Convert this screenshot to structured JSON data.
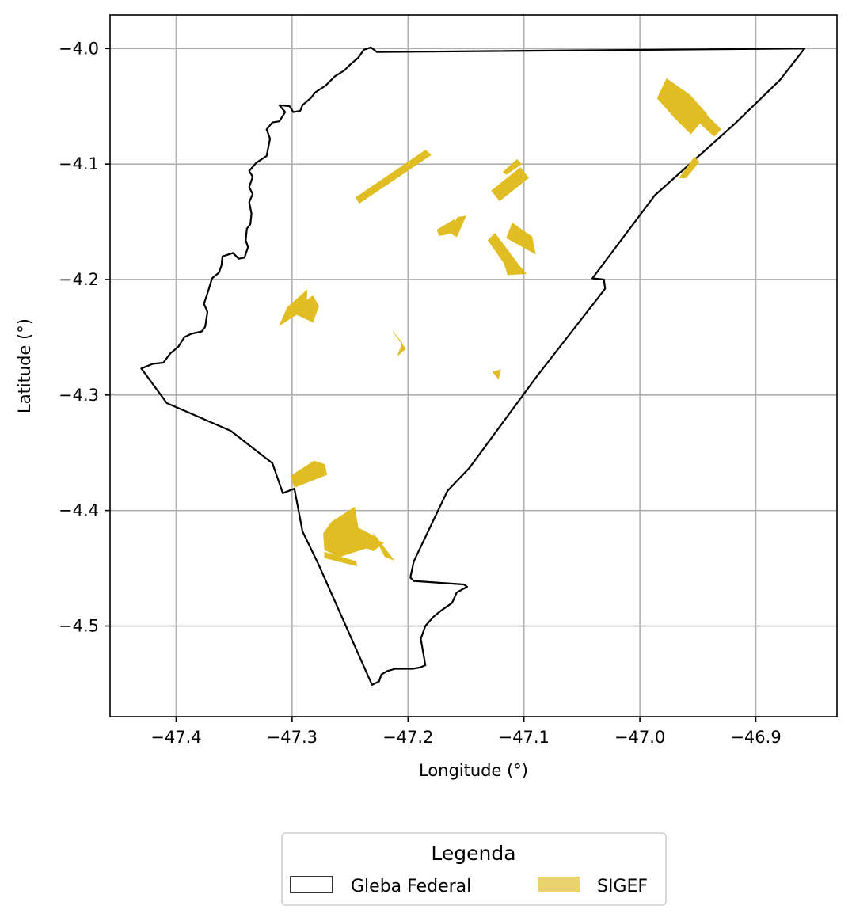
{
  "chart_data": {
    "type": "map",
    "xlabel": "Longitude (°)",
    "ylabel": "Latitude (°)",
    "xlim": [
      -47.457,
      -46.83
    ],
    "ylim": [
      -4.5785,
      -3.971
    ],
    "x_ticks": [
      -47.4,
      -47.3,
      -47.2,
      -47.1,
      -47.0,
      -46.9
    ],
    "x_tick_labels": [
      "−47.4",
      "−47.3",
      "−47.2",
      "−47.1",
      "−47.0",
      "−46.9"
    ],
    "y_ticks": [
      -4.0,
      -4.1,
      -4.2,
      -4.3,
      -4.4,
      -4.5
    ],
    "y_tick_labels": [
      "−4.0",
      "−4.1",
      "−4.2",
      "−4.3",
      "−4.4",
      "−4.5"
    ],
    "grid": true,
    "legend": {
      "title": "Legenda",
      "placement": "bottom-center",
      "items": [
        {
          "label": "Gleba Federal",
          "style": "outline",
          "color": "#000000"
        },
        {
          "label": "SIGEF",
          "style": "fill",
          "color": "#e8d36f"
        }
      ]
    },
    "series": [
      {
        "name": "Gleba Federal",
        "color": "#000000",
        "coordinates": [
          [
            -47.2268,
            -4.003
          ],
          [
            -46.858,
            -4.0
          ],
          [
            -46.879,
            -4.027
          ],
          [
            -46.918,
            -4.065
          ],
          [
            -46.987,
            -4.127
          ],
          [
            -47.041,
            -4.199
          ],
          [
            -47.031,
            -4.2
          ],
          [
            -47.03,
            -4.208
          ],
          [
            -47.089,
            -4.284
          ],
          [
            -47.147,
            -4.363
          ],
          [
            -47.166,
            -4.383
          ],
          [
            -47.195,
            -4.444
          ],
          [
            -47.198,
            -4.458
          ],
          [
            -47.195,
            -4.461
          ],
          [
            -47.152,
            -4.464
          ],
          [
            -47.149,
            -4.466
          ],
          [
            -47.158,
            -4.471
          ],
          [
            -47.162,
            -4.48
          ],
          [
            -47.172,
            -4.487
          ],
          [
            -47.178,
            -4.492
          ],
          [
            -47.185,
            -4.5
          ],
          [
            -47.189,
            -4.511
          ],
          [
            -47.185,
            -4.534
          ],
          [
            -47.19,
            -4.536
          ],
          [
            -47.196,
            -4.537
          ],
          [
            -47.211,
            -4.537
          ],
          [
            -47.218,
            -4.539
          ],
          [
            -47.223,
            -4.542
          ],
          [
            -47.225,
            -4.548
          ],
          [
            -47.231,
            -4.551
          ],
          [
            -47.277,
            -4.447
          ],
          [
            -47.291,
            -4.418
          ],
          [
            -47.298,
            -4.381
          ],
          [
            -47.308,
            -4.385
          ],
          [
            -47.317,
            -4.359
          ],
          [
            -47.353,
            -4.331
          ],
          [
            -47.408,
            -4.307
          ],
          [
            -47.43,
            -4.277
          ],
          [
            -47.42,
            -4.273
          ],
          [
            -47.411,
            -4.272
          ],
          [
            -47.405,
            -4.264
          ],
          [
            -47.398,
            -4.258
          ],
          [
            -47.393,
            -4.25
          ],
          [
            -47.387,
            -4.247
          ],
          [
            -47.378,
            -4.245
          ],
          [
            -47.375,
            -4.241
          ],
          [
            -47.373,
            -4.228
          ],
          [
            -47.376,
            -4.221
          ],
          [
            -47.373,
            -4.212
          ],
          [
            -47.369,
            -4.199
          ],
          [
            -47.363,
            -4.194
          ],
          [
            -47.361,
            -4.188
          ],
          [
            -47.36,
            -4.18
          ],
          [
            -47.351,
            -4.177
          ],
          [
            -47.346,
            -4.182
          ],
          [
            -47.341,
            -4.181
          ],
          [
            -47.338,
            -4.172
          ],
          [
            -47.34,
            -4.166
          ],
          [
            -47.339,
            -4.156
          ],
          [
            -47.336,
            -4.152
          ],
          [
            -47.335,
            -4.143
          ],
          [
            -47.337,
            -4.133
          ],
          [
            -47.334,
            -4.126
          ],
          [
            -47.337,
            -4.12
          ],
          [
            -47.334,
            -4.111
          ],
          [
            -47.337,
            -4.106
          ],
          [
            -47.331,
            -4.099
          ],
          [
            -47.322,
            -4.093
          ],
          [
            -47.319,
            -4.078
          ],
          [
            -47.322,
            -4.07
          ],
          [
            -47.317,
            -4.064
          ],
          [
            -47.311,
            -4.063
          ],
          [
            -47.306,
            -4.055
          ],
          [
            -47.311,
            -4.049
          ],
          [
            -47.302,
            -4.05
          ],
          [
            -47.299,
            -4.055
          ],
          [
            -47.293,
            -4.054
          ],
          [
            -47.291,
            -4.049
          ],
          [
            -47.284,
            -4.043
          ],
          [
            -47.28,
            -4.038
          ],
          [
            -47.271,
            -4.032
          ],
          [
            -47.263,
            -4.024
          ],
          [
            -47.255,
            -4.019
          ],
          [
            -47.25,
            -4.014
          ],
          [
            -47.243,
            -4.008
          ],
          [
            -47.238,
            -4.001
          ],
          [
            -47.232,
            -3.999
          ],
          [
            -47.2268,
            -4.003
          ]
        ]
      },
      {
        "name": "SIGEF",
        "color": "#e0bd22",
        "polygons": [
          [
            [
              -46.977,
              -4.026
            ],
            [
              -46.957,
              -4.04
            ],
            [
              -46.942,
              -4.057
            ],
            [
              -46.956,
              -4.074
            ],
            [
              -46.97,
              -4.06
            ],
            [
              -46.985,
              -4.043
            ]
          ],
          [
            [
              -46.948,
              -4.052
            ],
            [
              -46.93,
              -4.07
            ],
            [
              -46.936,
              -4.076
            ],
            [
              -46.951,
              -4.062
            ]
          ],
          [
            [
              -46.966,
              -4.112
            ],
            [
              -46.953,
              -4.094
            ],
            [
              -46.949,
              -4.098
            ],
            [
              -46.96,
              -4.112
            ]
          ],
          [
            [
              -47.185,
              -4.088
            ],
            [
              -47.245,
              -4.129
            ],
            [
              -47.242,
              -4.134
            ],
            [
              -47.18,
              -4.092
            ]
          ],
          [
            [
              -47.106,
              -4.096
            ],
            [
              -47.118,
              -4.107
            ],
            [
              -47.115,
              -4.109
            ],
            [
              -47.102,
              -4.1
            ]
          ],
          [
            [
              -47.103,
              -4.103
            ],
            [
              -47.128,
              -4.123
            ],
            [
              -47.121,
              -4.132
            ],
            [
              -47.096,
              -4.112
            ]
          ],
          [
            [
              -47.15,
              -4.145
            ],
            [
              -47.158,
              -4.163
            ],
            [
              -47.165,
              -4.159
            ],
            [
              -47.157,
              -4.146
            ]
          ],
          [
            [
              -47.16,
              -4.148
            ],
            [
              -47.175,
              -4.157
            ],
            [
              -47.173,
              -4.162
            ],
            [
              -47.156,
              -4.159
            ]
          ],
          [
            [
              -47.11,
              -4.151
            ],
            [
              -47.093,
              -4.163
            ],
            [
              -47.09,
              -4.178
            ],
            [
              -47.115,
              -4.164
            ]
          ],
          [
            [
              -47.125,
              -4.16
            ],
            [
              -47.104,
              -4.188
            ],
            [
              -47.098,
              -4.195
            ],
            [
              -47.114,
              -4.196
            ],
            [
              -47.117,
              -4.186
            ],
            [
              -47.131,
              -4.166
            ]
          ],
          [
            [
              -47.287,
              -4.209
            ],
            [
              -47.304,
              -4.224
            ],
            [
              -47.311,
              -4.24
            ],
            [
              -47.291,
              -4.227
            ],
            [
              -47.288,
              -4.224
            ]
          ],
          [
            [
              -47.282,
              -4.214
            ],
            [
              -47.301,
              -4.228
            ],
            [
              -47.282,
              -4.237
            ],
            [
              -47.277,
              -4.223
            ]
          ],
          [
            [
              -47.213,
              -4.245
            ],
            [
              -47.202,
              -4.26
            ],
            [
              -47.209,
              -4.266
            ],
            [
              -47.205,
              -4.255
            ]
          ],
          [
            [
              -47.12,
              -4.278
            ],
            [
              -47.127,
              -4.28
            ],
            [
              -47.122,
              -4.286
            ]
          ],
          [
            [
              -47.272,
              -4.36
            ],
            [
              -47.27,
              -4.369
            ],
            [
              -47.298,
              -4.38
            ],
            [
              -47.301,
              -4.37
            ],
            [
              -47.281,
              -4.357
            ]
          ],
          [
            [
              -47.246,
              -4.397
            ],
            [
              -47.266,
              -4.41
            ],
            [
              -47.273,
              -4.42
            ],
            [
              -47.272,
              -4.434
            ],
            [
              -47.259,
              -4.44
            ],
            [
              -47.234,
              -4.432
            ],
            [
              -47.226,
              -4.424
            ],
            [
              -47.243,
              -4.415
            ]
          ],
          [
            [
              -47.239,
              -4.42
            ],
            [
              -47.221,
              -4.428
            ],
            [
              -47.23,
              -4.435
            ],
            [
              -47.245,
              -4.428
            ]
          ],
          [
            [
              -47.23,
              -4.42
            ],
            [
              -47.212,
              -4.443
            ],
            [
              -47.22,
              -4.44
            ]
          ],
          [
            [
              -47.272,
              -4.436
            ],
            [
              -47.245,
              -4.444
            ],
            [
              -47.244,
              -4.448
            ],
            [
              -47.272,
              -4.441
            ]
          ]
        ]
      }
    ]
  }
}
